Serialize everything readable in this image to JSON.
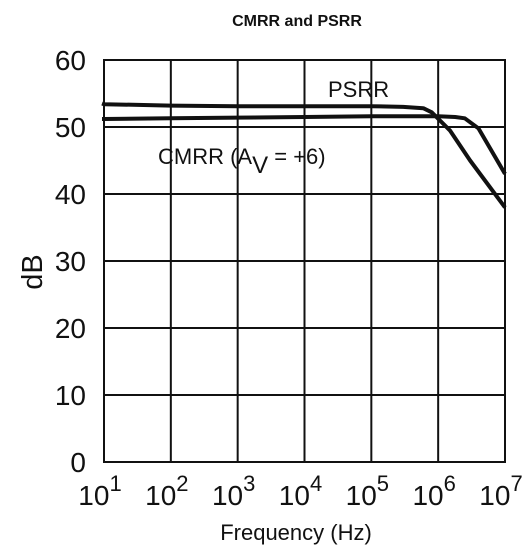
{
  "chart_data": {
    "type": "line",
    "title": "CMRR and PSRR",
    "xlabel": "Frequency (Hz)",
    "ylabel": "dB",
    "x_scale": "log",
    "xlim": [
      10,
      10000000
    ],
    "ylim": [
      0,
      60
    ],
    "grid": true,
    "x_ticks": [
      {
        "base": "10",
        "exp": "1"
      },
      {
        "base": "10",
        "exp": "2"
      },
      {
        "base": "10",
        "exp": "3"
      },
      {
        "base": "10",
        "exp": "4"
      },
      {
        "base": "10",
        "exp": "5"
      },
      {
        "base": "10",
        "exp": "6"
      },
      {
        "base": "10",
        "exp": "7"
      }
    ],
    "y_ticks": [
      "0",
      "10",
      "20",
      "30",
      "40",
      "50",
      "60"
    ],
    "series": [
      {
        "label_main": "PSRR",
        "x": [
          6,
          10,
          100,
          1000,
          10000,
          100000,
          300000,
          600000,
          800000,
          1500000,
          3000000,
          10000000
        ],
        "y": [
          53.5,
          53.4,
          53.2,
          53.1,
          53.1,
          53.1,
          53.0,
          52.8,
          52.2,
          49.5,
          45.0,
          38.0
        ]
      },
      {
        "label_main": "CMRR (A",
        "label_sub": "V",
        "label_tail": " = +6)",
        "x": [
          6,
          10,
          100,
          1000,
          10000,
          100000,
          1000000,
          1800000,
          2500000,
          4000000,
          10000000
        ],
        "y": [
          51.2,
          51.2,
          51.3,
          51.4,
          51.5,
          51.6,
          51.6,
          51.5,
          51.3,
          49.8,
          43.0
        ]
      }
    ]
  }
}
